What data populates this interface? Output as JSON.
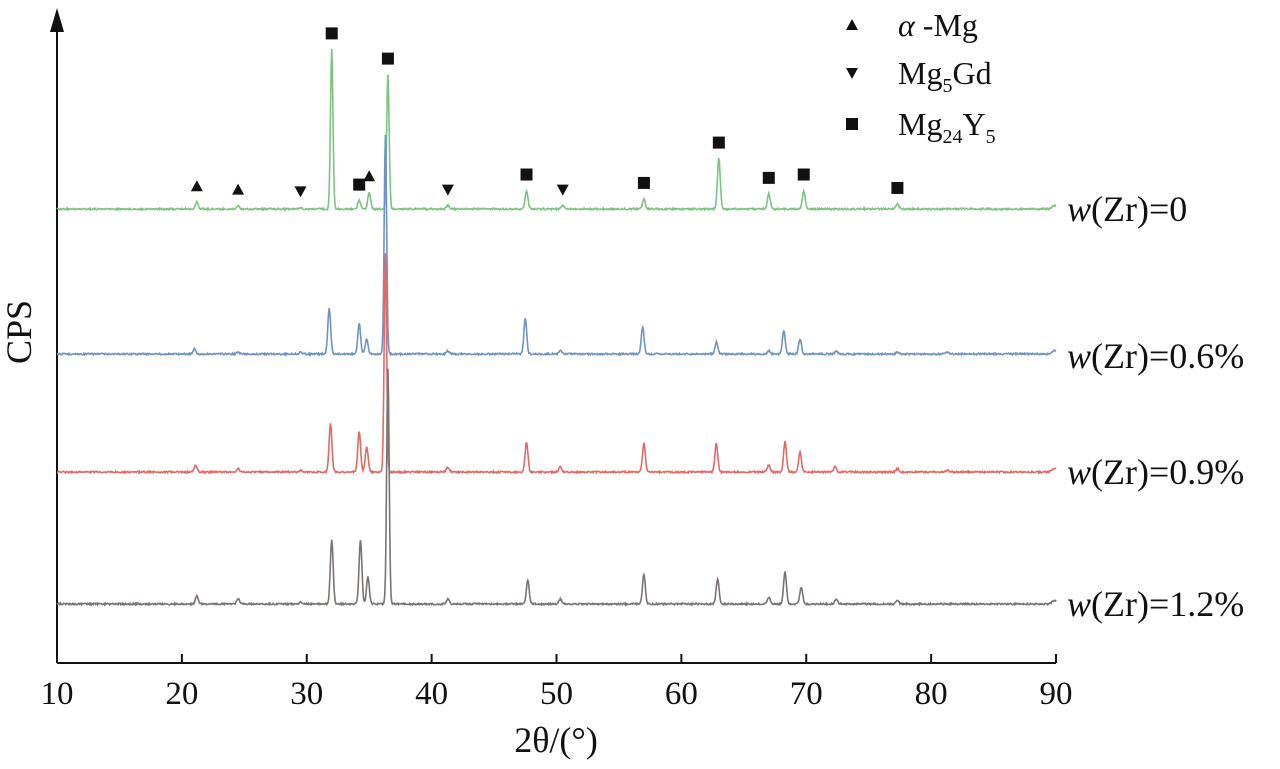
{
  "chart_data": {
    "type": "line",
    "xlabel": "2θ/(°)",
    "ylabel": "CPS",
    "xlim": [
      10,
      90
    ],
    "xticks": [
      10,
      20,
      30,
      40,
      50,
      60,
      70,
      80,
      90
    ],
    "grid": false,
    "legend": {
      "placement": "top-right",
      "entries": [
        {
          "marker": "triangle-up",
          "label": "α-Mg"
        },
        {
          "marker": "triangle-down",
          "label": "Mg5Gd"
        },
        {
          "marker": "square",
          "label": "Mg24Y5"
        }
      ]
    },
    "series": [
      {
        "name": "w(Zr)=0",
        "color": "#7cc47f",
        "peaks": [
          {
            "x": 21.2,
            "h": 0.04
          },
          {
            "x": 24.5,
            "h": 0.02
          },
          {
            "x": 29.5,
            "h": 0.01
          },
          {
            "x": 32.0,
            "h": 0.95
          },
          {
            "x": 34.2,
            "h": 0.05
          },
          {
            "x": 35.0,
            "h": 0.1
          },
          {
            "x": 36.5,
            "h": 0.8
          },
          {
            "x": 41.3,
            "h": 0.02
          },
          {
            "x": 47.6,
            "h": 0.11
          },
          {
            "x": 50.5,
            "h": 0.02
          },
          {
            "x": 57.0,
            "h": 0.06
          },
          {
            "x": 63.0,
            "h": 0.3
          },
          {
            "x": 67.0,
            "h": 0.09
          },
          {
            "x": 69.8,
            "h": 0.11
          },
          {
            "x": 77.3,
            "h": 0.03
          }
        ],
        "markers": [
          {
            "x": 21.2,
            "type": "triangle-up"
          },
          {
            "x": 24.5,
            "type": "triangle-up"
          },
          {
            "x": 29.5,
            "type": "triangle-down"
          },
          {
            "x": 32.0,
            "type": "square"
          },
          {
            "x": 34.2,
            "type": "square"
          },
          {
            "x": 35.0,
            "type": "triangle-up"
          },
          {
            "x": 36.5,
            "type": "square"
          },
          {
            "x": 41.3,
            "type": "triangle-down"
          },
          {
            "x": 47.6,
            "type": "square"
          },
          {
            "x": 50.5,
            "type": "triangle-down"
          },
          {
            "x": 57.0,
            "type": "square"
          },
          {
            "x": 63.0,
            "type": "square"
          },
          {
            "x": 67.0,
            "type": "square"
          },
          {
            "x": 69.8,
            "type": "square"
          },
          {
            "x": 77.3,
            "type": "square"
          }
        ]
      },
      {
        "name": "w(Zr)=0.6%",
        "color": "#6e93c7",
        "peaks": [
          {
            "x": 21.0,
            "h": 0.03
          },
          {
            "x": 24.5,
            "h": 0.01
          },
          {
            "x": 29.5,
            "h": 0.01
          },
          {
            "x": 31.8,
            "h": 0.27
          },
          {
            "x": 34.2,
            "h": 0.18
          },
          {
            "x": 34.8,
            "h": 0.09
          },
          {
            "x": 36.3,
            "h": 1.3
          },
          {
            "x": 41.3,
            "h": 0.02
          },
          {
            "x": 47.5,
            "h": 0.21
          },
          {
            "x": 50.3,
            "h": 0.02
          },
          {
            "x": 56.9,
            "h": 0.16
          },
          {
            "x": 62.8,
            "h": 0.07
          },
          {
            "x": 67.0,
            "h": 0.02
          },
          {
            "x": 68.2,
            "h": 0.14
          },
          {
            "x": 69.5,
            "h": 0.09
          },
          {
            "x": 72.4,
            "h": 0.02
          },
          {
            "x": 77.3,
            "h": 0.01
          },
          {
            "x": 81.3,
            "h": 0.01
          }
        ],
        "markers": []
      },
      {
        "name": "w(Zr)=0.9%",
        "color": "#e26a66",
        "peaks": [
          {
            "x": 21.1,
            "h": 0.04
          },
          {
            "x": 24.5,
            "h": 0.02
          },
          {
            "x": 29.5,
            "h": 0.01
          },
          {
            "x": 31.9,
            "h": 0.29
          },
          {
            "x": 34.2,
            "h": 0.24
          },
          {
            "x": 34.8,
            "h": 0.15
          },
          {
            "x": 36.3,
            "h": 1.3
          },
          {
            "x": 41.3,
            "h": 0.03
          },
          {
            "x": 47.6,
            "h": 0.18
          },
          {
            "x": 50.3,
            "h": 0.03
          },
          {
            "x": 57.0,
            "h": 0.17
          },
          {
            "x": 62.8,
            "h": 0.17
          },
          {
            "x": 67.0,
            "h": 0.04
          },
          {
            "x": 68.3,
            "h": 0.18
          },
          {
            "x": 69.5,
            "h": 0.12
          },
          {
            "x": 72.3,
            "h": 0.03
          },
          {
            "x": 77.3,
            "h": 0.02
          },
          {
            "x": 81.3,
            "h": 0.01
          }
        ],
        "markers": []
      },
      {
        "name": "w(Zr)=1.2%",
        "color": "#7a7472",
        "peaks": [
          {
            "x": 21.2,
            "h": 0.05
          },
          {
            "x": 24.5,
            "h": 0.03
          },
          {
            "x": 29.5,
            "h": 0.01
          },
          {
            "x": 32.0,
            "h": 0.38
          },
          {
            "x": 34.3,
            "h": 0.38
          },
          {
            "x": 34.9,
            "h": 0.16
          },
          {
            "x": 36.5,
            "h": 1.4
          },
          {
            "x": 41.3,
            "h": 0.03
          },
          {
            "x": 47.7,
            "h": 0.14
          },
          {
            "x": 50.3,
            "h": 0.03
          },
          {
            "x": 57.0,
            "h": 0.18
          },
          {
            "x": 62.9,
            "h": 0.15
          },
          {
            "x": 67.0,
            "h": 0.04
          },
          {
            "x": 68.3,
            "h": 0.19
          },
          {
            "x": 69.6,
            "h": 0.1
          },
          {
            "x": 72.4,
            "h": 0.03
          },
          {
            "x": 77.3,
            "h": 0.02
          }
        ],
        "markers": []
      }
    ]
  }
}
